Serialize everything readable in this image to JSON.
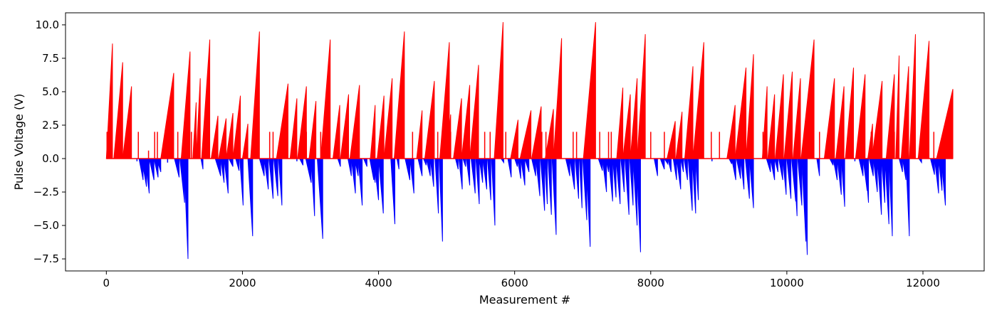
{
  "chart_data": {
    "type": "bar",
    "title": "",
    "xlabel": "Measurement #",
    "ylabel": "Pulse Voltage (V)",
    "xlim": [
      -600,
      12900
    ],
    "ylim": [
      -8.4,
      10.9
    ],
    "xticks": [
      0,
      2000,
      4000,
      6000,
      8000,
      10000,
      12000
    ],
    "xtick_labels": [
      "0",
      "2000",
      "4000",
      "6000",
      "8000",
      "10000",
      "12000"
    ],
    "yticks": [
      -7.5,
      -5.0,
      -2.5,
      0.0,
      2.5,
      5.0,
      7.5,
      10.0
    ],
    "ytick_labels": [
      "−7.5",
      "−5.0",
      "−2.5",
      "0.0",
      "2.5",
      "5.0",
      "7.5",
      "10.0"
    ],
    "grid": false,
    "legend": "none",
    "colors": {
      "positive": "#ff0000",
      "negative": "#0000ff"
    },
    "series": [
      {
        "color": "#ff0000",
        "ramps": [
          [
            0,
            90,
            8.6
          ],
          [
            110,
            240,
            7.2
          ],
          [
            240,
            370,
            5.4
          ],
          [
            800,
            990,
            6.4
          ],
          [
            1100,
            1230,
            8.0
          ],
          [
            1270,
            1320,
            4.2
          ],
          [
            1320,
            1380,
            6.0
          ],
          [
            1400,
            1520,
            8.9
          ],
          [
            1540,
            1640,
            3.2
          ],
          [
            1650,
            1760,
            3.0
          ],
          [
            1760,
            1860,
            3.4
          ],
          [
            1860,
            1970,
            4.7
          ],
          [
            2000,
            2080,
            2.6
          ],
          [
            2120,
            2250,
            9.5
          ],
          [
            2500,
            2670,
            5.6
          ],
          [
            2700,
            2800,
            4.5
          ],
          [
            2810,
            2940,
            5.4
          ],
          [
            2980,
            3080,
            4.3
          ],
          [
            3150,
            3290,
            8.9
          ],
          [
            3330,
            3430,
            4.0
          ],
          [
            3440,
            3560,
            4.8
          ],
          [
            3580,
            3720,
            5.5
          ],
          [
            3880,
            3950,
            4.0
          ],
          [
            3980,
            4080,
            4.7
          ],
          [
            4080,
            4200,
            6.0
          ],
          [
            4230,
            4380,
            9.5
          ],
          [
            4560,
            4640,
            3.6
          ],
          [
            4680,
            4820,
            5.8
          ],
          [
            4900,
            5040,
            8.7
          ],
          [
            5000,
            5060,
            3.3
          ],
          [
            5100,
            5220,
            4.5
          ],
          [
            5220,
            5340,
            5.5
          ],
          [
            5340,
            5470,
            7.0
          ],
          [
            5700,
            5830,
            10.2
          ],
          [
            5940,
            6050,
            2.9
          ],
          [
            6080,
            6240,
            3.6
          ],
          [
            6250,
            6390,
            3.9
          ],
          [
            6450,
            6570,
            3.7
          ],
          [
            6570,
            6690,
            9.0
          ],
          [
            7010,
            7190,
            10.2
          ],
          [
            7500,
            7590,
            5.3
          ],
          [
            7590,
            7700,
            4.8
          ],
          [
            7700,
            7800,
            6.0
          ],
          [
            7800,
            7920,
            9.3
          ],
          [
            8240,
            8360,
            2.8
          ],
          [
            8370,
            8460,
            3.5
          ],
          [
            8500,
            8620,
            6.9
          ],
          [
            8620,
            8780,
            8.7
          ],
          [
            9120,
            9240,
            4.0
          ],
          [
            9240,
            9400,
            6.8
          ],
          [
            9400,
            9510,
            7.8
          ],
          [
            9640,
            9710,
            5.4
          ],
          [
            9720,
            9820,
            4.8
          ],
          [
            9830,
            9950,
            6.3
          ],
          [
            9960,
            10080,
            6.5
          ],
          [
            10090,
            10200,
            6.0
          ],
          [
            10210,
            10400,
            8.9
          ],
          [
            10550,
            10700,
            6.0
          ],
          [
            10720,
            10840,
            5.4
          ],
          [
            10860,
            10980,
            6.8
          ],
          [
            11010,
            11150,
            6.3
          ],
          [
            11190,
            11260,
            2.6
          ],
          [
            11250,
            11400,
            5.8
          ],
          [
            11460,
            11580,
            6.3
          ],
          [
            11600,
            11650,
            7.7
          ],
          [
            11680,
            11790,
            6.9
          ],
          [
            11800,
            11890,
            9.3
          ],
          [
            11930,
            12090,
            8.8
          ],
          [
            12200,
            12440,
            5.2
          ]
        ],
        "spikes": [
          [
            10,
            2.0
          ],
          [
            470,
            2.0
          ],
          [
            620,
            0.6
          ],
          [
            710,
            2.0
          ],
          [
            750,
            2.0
          ],
          [
            1050,
            2.0
          ],
          [
            1250,
            2.0
          ],
          [
            1620,
            2.0
          ],
          [
            2400,
            2.0
          ],
          [
            2450,
            2.0
          ],
          [
            2940,
            2.0
          ],
          [
            3150,
            2.0
          ],
          [
            3700,
            2.0
          ],
          [
            4500,
            2.0
          ],
          [
            4780,
            2.0
          ],
          [
            4870,
            2.0
          ],
          [
            5060,
            2.0
          ],
          [
            5560,
            2.0
          ],
          [
            5640,
            2.0
          ],
          [
            5870,
            2.0
          ],
          [
            6400,
            2.0
          ],
          [
            6460,
            2.0
          ],
          [
            6860,
            2.0
          ],
          [
            6910,
            2.0
          ],
          [
            7250,
            2.0
          ],
          [
            7380,
            2.0
          ],
          [
            7420,
            2.0
          ],
          [
            8000,
            2.0
          ],
          [
            8200,
            2.0
          ],
          [
            8570,
            2.0
          ],
          [
            8890,
            2.0
          ],
          [
            9010,
            2.0
          ],
          [
            9650,
            2.0
          ],
          [
            10480,
            2.0
          ],
          [
            11240,
            2.0
          ],
          [
            11580,
            2.0
          ],
          [
            12160,
            2.0
          ]
        ]
      },
      {
        "color": "#0000ff",
        "ramps": [
          [
            480,
            540,
            -1.6
          ],
          [
            520,
            590,
            -2.1
          ],
          [
            570,
            630,
            -2.6
          ],
          [
            630,
            700,
            -1.6
          ],
          [
            700,
            760,
            -1.4
          ],
          [
            740,
            800,
            -1.0
          ],
          [
            1000,
            1070,
            -1.4
          ],
          [
            1080,
            1150,
            -3.3
          ],
          [
            1140,
            1200,
            -7.5
          ],
          [
            1390,
            1420,
            -0.8
          ],
          [
            1600,
            1680,
            -1.3
          ],
          [
            1680,
            1730,
            -1.8
          ],
          [
            1730,
            1790,
            -2.6
          ],
          [
            1800,
            1860,
            -0.6
          ],
          [
            1900,
            1950,
            -0.9
          ],
          [
            1960,
            2010,
            -3.5
          ],
          [
            2080,
            2150,
            -5.8
          ],
          [
            2250,
            2320,
            -1.3
          ],
          [
            2320,
            2380,
            -2.3
          ],
          [
            2390,
            2450,
            -3.0
          ],
          [
            2460,
            2520,
            -2.8
          ],
          [
            2530,
            2580,
            -3.5
          ],
          [
            2840,
            2890,
            -0.5
          ],
          [
            2930,
            3010,
            -1.8
          ],
          [
            3010,
            3060,
            -4.3
          ],
          [
            3100,
            3180,
            -6.0
          ],
          [
            3400,
            3440,
            -0.6
          ],
          [
            3550,
            3600,
            -1.3
          ],
          [
            3600,
            3660,
            -2.6
          ],
          [
            3650,
            3700,
            -1.3
          ],
          [
            3700,
            3760,
            -3.5
          ],
          [
            3780,
            3830,
            -0.6
          ],
          [
            3870,
            3930,
            -1.6
          ],
          [
            3900,
            3950,
            -1.8
          ],
          [
            3930,
            4000,
            -3.1
          ],
          [
            4000,
            4070,
            -4.1
          ],
          [
            4180,
            4240,
            -4.9
          ],
          [
            4270,
            4300,
            -0.8
          ],
          [
            4390,
            4460,
            -1.6
          ],
          [
            4460,
            4520,
            -2.6
          ],
          [
            4580,
            4640,
            -1.3
          ],
          [
            4660,
            4700,
            -0.5
          ],
          [
            4700,
            4760,
            -1.3
          ],
          [
            4760,
            4810,
            -2.1
          ],
          [
            4830,
            4880,
            -4.1
          ],
          [
            4890,
            4940,
            -6.2
          ],
          [
            5130,
            5170,
            -0.8
          ],
          [
            5180,
            5230,
            -2.3
          ],
          [
            5240,
            5280,
            -0.6
          ],
          [
            5290,
            5340,
            -2.0
          ],
          [
            5360,
            5420,
            -2.6
          ],
          [
            5430,
            5480,
            -3.4
          ],
          [
            5480,
            5530,
            -1.8
          ],
          [
            5530,
            5590,
            -2.3
          ],
          [
            5600,
            5650,
            -3.1
          ],
          [
            5660,
            5710,
            -5.0
          ],
          [
            5800,
            5840,
            -0.3
          ],
          [
            5900,
            5950,
            -1.4
          ],
          [
            6000,
            6040,
            -0.6
          ],
          [
            6040,
            6090,
            -1.5
          ],
          [
            6090,
            6150,
            -2.0
          ],
          [
            6150,
            6210,
            -1.0
          ],
          [
            6250,
            6310,
            -1.3
          ],
          [
            6310,
            6370,
            -2.8
          ],
          [
            6380,
            6440,
            -3.9
          ],
          [
            6440,
            6480,
            -3.4
          ],
          [
            6490,
            6540,
            -4.2
          ],
          [
            6550,
            6610,
            -5.7
          ],
          [
            6750,
            6810,
            -1.3
          ],
          [
            6810,
            6880,
            -2.3
          ],
          [
            6890,
            6940,
            -3.0
          ],
          [
            6950,
            6990,
            -3.7
          ],
          [
            7000,
            7060,
            -4.6
          ],
          [
            7050,
            7110,
            -6.6
          ],
          [
            7230,
            7290,
            -0.9
          ],
          [
            7290,
            7350,
            -2.5
          ],
          [
            7340,
            7380,
            -1.0
          ],
          [
            7380,
            7440,
            -3.2
          ],
          [
            7440,
            7490,
            -2.9
          ],
          [
            7490,
            7550,
            -3.4
          ],
          [
            7560,
            7610,
            -2.5
          ],
          [
            7620,
            7680,
            -4.2
          ],
          [
            7690,
            7740,
            -3.5
          ],
          [
            7740,
            7800,
            -5.0
          ],
          [
            7790,
            7850,
            -7.0
          ],
          [
            8050,
            8100,
            -1.3
          ],
          [
            8140,
            8200,
            -0.8
          ],
          [
            8200,
            8250,
            -0.4
          ],
          [
            8250,
            8300,
            -1.0
          ],
          [
            8330,
            8380,
            -1.6
          ],
          [
            8380,
            8440,
            -2.3
          ],
          [
            8440,
            8480,
            -1.0
          ],
          [
            8490,
            8540,
            -1.6
          ],
          [
            8550,
            8610,
            -3.9
          ],
          [
            8610,
            8660,
            -4.1
          ],
          [
            8660,
            8700,
            -3.1
          ],
          [
            9150,
            9190,
            -0.4
          ],
          [
            9190,
            9250,
            -1.6
          ],
          [
            9260,
            9320,
            -1.5
          ],
          [
            9320,
            9370,
            -2.3
          ],
          [
            9390,
            9450,
            -3.0
          ],
          [
            9450,
            9510,
            -3.7
          ],
          [
            9700,
            9760,
            -1.0
          ],
          [
            9760,
            9820,
            -1.6
          ],
          [
            9820,
            9870,
            -1.0
          ],
          [
            9880,
            9940,
            -1.6
          ],
          [
            9940,
            9990,
            -2.7
          ],
          [
            10000,
            10060,
            -3.0
          ],
          [
            10070,
            10130,
            -3.2
          ],
          [
            10100,
            10150,
            -4.3
          ],
          [
            10160,
            10220,
            -3.5
          ],
          [
            10220,
            10280,
            -6.2
          ],
          [
            10250,
            10300,
            -7.2
          ],
          [
            10440,
            10480,
            -1.3
          ],
          [
            10630,
            10680,
            -0.5
          ],
          [
            10680,
            10740,
            -1.6
          ],
          [
            10740,
            10800,
            -2.7
          ],
          [
            10800,
            10850,
            -3.6
          ],
          [
            11060,
            11120,
            -1.3
          ],
          [
            11120,
            11180,
            -2.4
          ],
          [
            11150,
            11200,
            -3.3
          ],
          [
            11210,
            11270,
            -1.3
          ],
          [
            11270,
            11330,
            -2.5
          ],
          [
            11330,
            11390,
            -4.2
          ],
          [
            11390,
            11440,
            -3.3
          ],
          [
            11440,
            11500,
            -4.9
          ],
          [
            11500,
            11550,
            -5.8
          ],
          [
            11650,
            11700,
            -1.0
          ],
          [
            11700,
            11750,
            -1.6
          ],
          [
            11750,
            11800,
            -5.8
          ],
          [
            11940,
            11980,
            -0.3
          ],
          [
            12110,
            12170,
            -1.2
          ],
          [
            12170,
            12230,
            -2.6
          ],
          [
            12230,
            12280,
            -2.4
          ],
          [
            12270,
            12330,
            -3.5
          ]
        ],
        "spikes": [
          [
            450,
            -0.2
          ],
          [
            900,
            -0.3
          ],
          [
            2300,
            -0.3
          ],
          [
            2800,
            -0.2
          ],
          [
            6600,
            -0.3
          ],
          [
            8900,
            -0.2
          ],
          [
            11000,
            -0.2
          ]
        ]
      }
    ]
  }
}
